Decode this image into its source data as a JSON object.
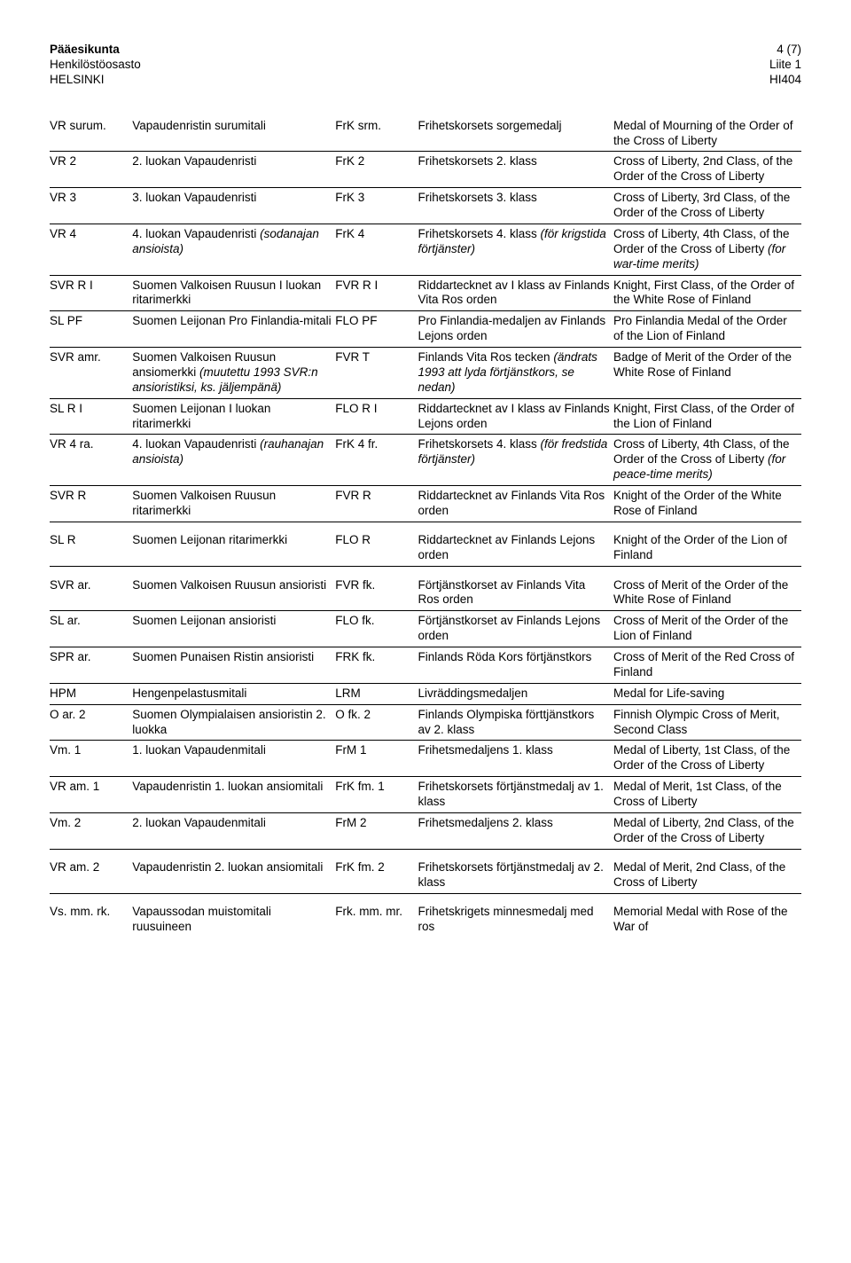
{
  "header": {
    "left": {
      "line1": "Pääesikunta",
      "line2": "Henkilöstöosasto",
      "line3": "HELSINKI"
    },
    "right": {
      "line1": "4 (7)",
      "line2": "Liite 1",
      "line3": "HI404"
    }
  },
  "rows": [
    {
      "a": "VR surum.",
      "b": "Vapaudenristin surumitali",
      "c": "FrK srm.",
      "d": "Frihetskorsets sorgemedalj",
      "e": "Medal of Mourning of the Order of the Cross of Liberty",
      "rule": true
    },
    {
      "a": "VR 2",
      "b": "2. luokan Vapaudenristi",
      "c": "FrK 2",
      "d": "Frihetskorsets 2. klass",
      "e": "Cross of Liberty, 2nd Class, of the Order of the Cross of Liberty",
      "rule": true
    },
    {
      "a": "VR 3",
      "b": "3. luokan Vapaudenristi",
      "c": "FrK 3",
      "d": "Frihetskorsets 3. klass",
      "e": "Cross of Liberty, 3rd Class, of the Order of the Cross of Liberty",
      "rule": true
    },
    {
      "a": "VR 4",
      "b": "4. luokan Vapaudenristi <span class='it'>(sodanajan ansioista)</span>",
      "c": "FrK 4",
      "d": "Frihetskorsets 4. klass <span class='it'>(för krigstida förtjänster)</span>",
      "e": "Cross of Liberty, 4th Class, of the Order of the Cross of Liberty <span class='it'>(for war-time merits)</span>",
      "rule": true
    },
    {
      "a": "SVR R I",
      "b": "Suomen Valkoisen Ruusun I luokan ritarimerkki",
      "c": "FVR R I",
      "d": "Riddartecknet av I klass av Finlands Vita Ros orden",
      "e": "Knight, First Class, of the Order of the White Rose of Finland",
      "rule": true
    },
    {
      "a": "SL PF",
      "b": "Suomen Leijonan Pro Finlandia-mitali",
      "c": "FLO PF",
      "d": "Pro Finlandia-medaljen av Finlands Lejons orden",
      "e": "Pro Finlandia Medal of the Order of the Lion of Finland",
      "rule": true
    },
    {
      "a": "SVR amr.",
      "b": "Suomen Valkoisen Ruusun ansiomerkki <span class='it'>(muutettu 1993 SVR:n ansioristiksi, ks. jäljempänä)</span>",
      "c": "FVR T",
      "d": "Finlands Vita Ros tecken <span class='it'>(ändrats 1993 att lyda förtjänstkors, se nedan)</span>",
      "e": "Badge of Merit of the Order of the White Rose of Finland",
      "rule": true
    },
    {
      "a": "SL R I",
      "b": "Suomen Leijonan I luokan ritarimerkki",
      "c": "FLO R I",
      "d": "Riddartecknet av I klass av Finlands Lejons orden",
      "e": "Knight, First Class, of the Order of the Lion of Finland",
      "rule": true
    },
    {
      "a": "VR 4 ra.",
      "b": "4. luokan Vapaudenristi <span class='it'>(rauhanajan ansioista)</span>",
      "c": "FrK 4 fr.",
      "d": "Frihetskorsets 4. klass <span class='it'>(för fredstida förtjänster)</span>",
      "e": "Cross of Liberty, 4th Class, of the Order of the Cross of Liberty <span class='it'>(for peace-time merits)</span>",
      "rule": true
    },
    {
      "a": "SVR R",
      "b": "Suomen Valkoisen Ruusun ritarimerkki",
      "c": "FVR R",
      "d": "Riddartecknet av Finlands Vita Ros orden",
      "e": "Knight of the Order of the White Rose of Finland",
      "rule": true,
      "gapAfter": true
    },
    {
      "a": "SL R",
      "b": "Suomen Leijonan ritarimerkki",
      "c": "FLO R",
      "d": "Riddartecknet av Finlands Lejons orden",
      "e": "Knight of the Order of the Lion of Finland",
      "rule": true,
      "gapAfter": true
    },
    {
      "a": "SVR ar.",
      "b": "Suomen Valkoisen Ruusun ansioristi",
      "c": "FVR fk.",
      "d": "Förtjänstkorset av Finlands Vita Ros orden",
      "e": "Cross of Merit of the Order of the White Rose of Finland",
      "rule": true
    },
    {
      "a": "SL ar.",
      "b": "Suomen Leijonan ansioristi",
      "c": "FLO fk.",
      "d": "Förtjänstkorset av Finlands Lejons orden",
      "e": "Cross of Merit of the Order of the Lion of Finland",
      "rule": true
    },
    {
      "a": "SPR ar.",
      "b": "Suomen Punaisen Ristin ansioristi",
      "c": "FRK fk.",
      "d": "Finlands Röda Kors förtjänstkors",
      "e": "Cross of Merit of the Red Cross of Finland",
      "rule": true
    },
    {
      "a": "HPM",
      "b": "Hengenpelastusmitali",
      "c": "LRM",
      "d": "Livräddingsmedaljen",
      "e": "Medal for Life-saving",
      "rule": true
    },
    {
      "a": "O ar. 2",
      "b": "Suomen Olympialaisen ansioristin 2. luokka",
      "c": "O fk. 2",
      "d": "Finlands Olympiska förttjänstkors av 2. klass",
      "e": "Finnish Olympic Cross of Merit, Second Class",
      "rule": true
    },
    {
      "a": "Vm. 1",
      "b": "1. luokan Vapaudenmitali",
      "c": "FrM 1",
      "d": "Frihetsmedaljens 1. klass",
      "e": "Medal of Liberty, 1st Class, of the Order of the Cross of Liberty",
      "rule": true
    },
    {
      "a": "VR am. 1",
      "b": "Vapaudenristin 1. luokan ansiomitali",
      "c": "FrK fm. 1",
      "d": "Frihetskorsets förtjänstmedalj av 1. klass",
      "e": "Medal of Merit, 1st Class, of the Cross of Liberty",
      "rule": true
    },
    {
      "a": "Vm. 2",
      "b": "2. luokan Vapaudenmitali",
      "c": "FrM 2",
      "d": "Frihetsmedaljens 2. klass",
      "e": "Medal of Liberty, 2nd Class, of the Order of the Cross of Liberty",
      "rule": true,
      "gapAfter": true
    },
    {
      "a": "VR am. 2",
      "b": "Vapaudenristin 2. luokan ansiomitali",
      "c": "FrK fm. 2",
      "d": "Frihetskorsets förtjänstmedalj av 2. klass",
      "e": "Medal of Merit, 2nd Class, of the Cross of Liberty",
      "rule": true,
      "gapAfter": true
    },
    {
      "a": "Vs. mm. rk.",
      "b": "Vapaussodan muistomitali ruusuineen",
      "c": "Frk. mm. mr.",
      "d": "Frihetskrigets minnesmedalj med ros",
      "e": "Memorial Medal with Rose of the War of",
      "rule": false
    }
  ]
}
